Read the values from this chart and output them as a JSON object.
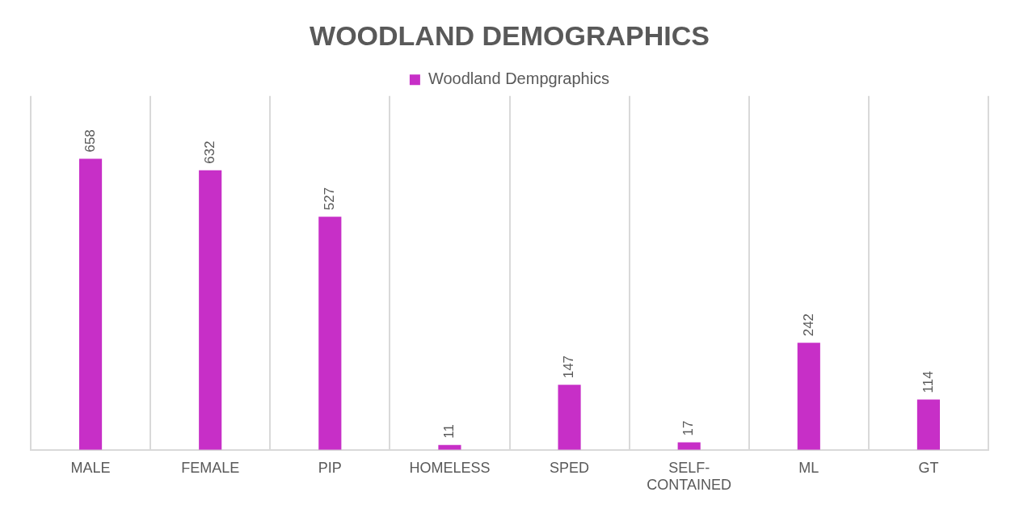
{
  "chart_data": {
    "type": "bar",
    "title": "WOODLAND DEMOGRAPHICS",
    "categories": [
      "MALE",
      "FEMALE",
      "PIP",
      "HOMELESS",
      "SPED",
      "SELF-CONTAINED",
      "ML",
      "GT"
    ],
    "series": [
      {
        "name": "Woodland Dempgraphics",
        "color": "#c72fc7",
        "values": [
          658,
          632,
          527,
          11,
          147,
          17,
          242,
          114
        ]
      }
    ],
    "tick_labels": "x",
    "data_labels": true,
    "grid": "x",
    "legend": "top"
  }
}
